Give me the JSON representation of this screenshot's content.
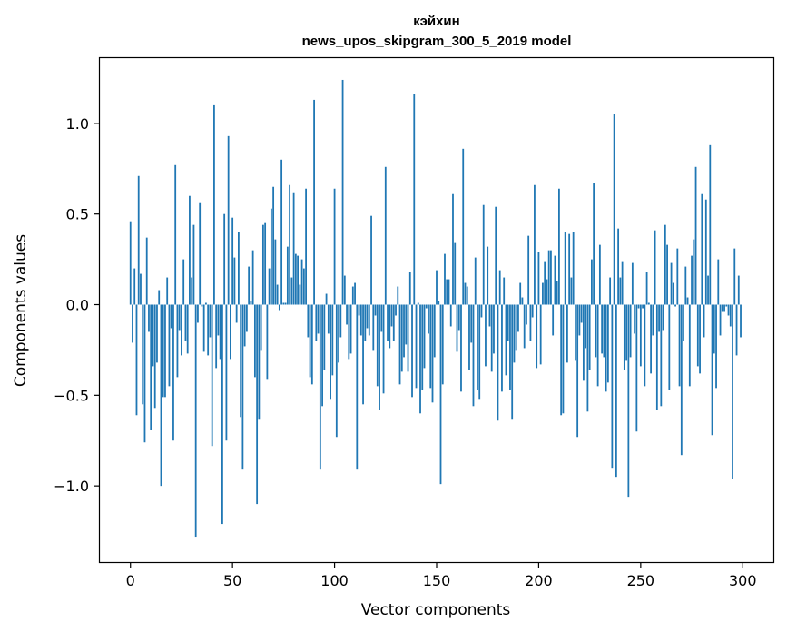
{
  "chart_data": {
    "type": "bar",
    "title": "кэйхин",
    "subtitle": "news_upos_skipgram_300_5_2019 model",
    "xlabel": "Vector components",
    "ylabel": "Components values",
    "xlim": [
      -15,
      315
    ],
    "ylim": [
      -1.42,
      1.36
    ],
    "xticks": [
      0,
      50,
      100,
      150,
      200,
      250,
      300
    ],
    "yticks": [
      -1.0,
      -0.5,
      0.0,
      0.5,
      1.0
    ],
    "xtick_labels": [
      "0",
      "50",
      "100",
      "150",
      "200",
      "250",
      "300"
    ],
    "ytick_labels": [
      "−1.0",
      "−0.5",
      "0.0",
      "0.5",
      "1.0"
    ],
    "bar_color": "#1f77b4",
    "x": "0..299",
    "values": [
      0.46,
      -0.21,
      0.2,
      -0.61,
      0.71,
      0.17,
      -0.55,
      -0.76,
      0.37,
      -0.15,
      -0.69,
      -0.34,
      -0.57,
      -0.32,
      0.08,
      -1.0,
      -0.51,
      -0.51,
      0.15,
      -0.45,
      -0.13,
      -0.75,
      0.77,
      -0.4,
      -0.14,
      -0.28,
      0.25,
      -0.2,
      -0.27,
      0.6,
      0.15,
      0.44,
      -1.28,
      -0.1,
      0.56,
      -0.01,
      -0.26,
      0.01,
      -0.28,
      -0.18,
      -0.78,
      1.1,
      -0.35,
      -0.17,
      -0.3,
      -1.21,
      0.5,
      -0.75,
      0.93,
      -0.3,
      0.48,
      0.26,
      -0.1,
      0.4,
      -0.62,
      -0.91,
      -0.23,
      -0.15,
      0.21,
      0.02,
      0.3,
      -0.4,
      -1.1,
      -0.63,
      -0.25,
      0.44,
      0.45,
      -0.41,
      0.2,
      0.53,
      0.65,
      0.36,
      0.11,
      -0.03,
      0.8,
      0.01,
      0.01,
      0.32,
      0.66,
      0.15,
      0.62,
      0.28,
      0.27,
      0.11,
      0.25,
      0.2,
      0.64,
      -0.18,
      -0.4,
      -0.44,
      1.13,
      -0.2,
      -0.16,
      -0.91,
      -0.56,
      -0.36,
      0.06,
      -0.16,
      -0.52,
      -0.39,
      0.64,
      -0.73,
      -0.32,
      -0.18,
      1.24,
      0.16,
      -0.11,
      -0.3,
      -0.27,
      0.1,
      0.12,
      -0.91,
      -0.06,
      -0.17,
      -0.55,
      -0.2,
      -0.13,
      -0.17,
      0.49,
      -0.25,
      -0.06,
      -0.45,
      -0.58,
      -0.15,
      -0.49,
      0.76,
      -0.2,
      -0.24,
      -0.12,
      -0.2,
      -0.06,
      0.1,
      -0.44,
      -0.37,
      -0.29,
      -0.22,
      -0.37,
      0.18,
      -0.51,
      1.16,
      -0.46,
      0.01,
      -0.6,
      -0.47,
      -0.35,
      -0.02,
      -0.16,
      -0.46,
      -0.54,
      -0.29,
      0.19,
      0.02,
      -0.99,
      -0.44,
      0.28,
      0.14,
      0.14,
      -0.12,
      0.61,
      0.34,
      -0.26,
      -0.14,
      -0.48,
      0.86,
      0.12,
      0.1,
      -0.36,
      -0.21,
      -0.56,
      0.26,
      -0.47,
      -0.52,
      -0.07,
      0.55,
      -0.34,
      0.32,
      -0.12,
      -0.37,
      -0.27,
      0.54,
      -0.64,
      0.19,
      -0.48,
      0.15,
      -0.39,
      -0.2,
      -0.47,
      -0.63,
      -0.32,
      -0.25,
      -0.15,
      0.12,
      0.04,
      -0.24,
      -0.11,
      0.38,
      -0.2,
      -0.07,
      0.66,
      -0.35,
      0.29,
      -0.33,
      0.12,
      0.24,
      0.14,
      0.3,
      0.3,
      -0.17,
      0.27,
      0.13,
      0.64,
      -0.61,
      -0.6,
      0.4,
      -0.32,
      0.39,
      0.15,
      0.4,
      -0.31,
      -0.73,
      -0.17,
      -0.1,
      -0.42,
      -0.24,
      -0.59,
      -0.36,
      0.25,
      0.67,
      -0.29,
      -0.45,
      0.33,
      -0.27,
      -0.29,
      -0.48,
      -0.43,
      0.15,
      -0.9,
      1.05,
      -0.95,
      0.42,
      0.15,
      0.24,
      -0.36,
      -0.31,
      -1.06,
      -0.29,
      0.23,
      -0.16,
      -0.7,
      -0.02,
      -0.34,
      -0.02,
      -0.45,
      0.18,
      0.01,
      -0.38,
      -0.17,
      0.41,
      -0.58,
      -0.15,
      -0.56,
      -0.14,
      0.44,
      0.33,
      -0.47,
      0.23,
      0.12,
      -0.01,
      0.31,
      -0.45,
      -0.83,
      -0.2,
      0.21,
      0.04,
      -0.45,
      0.27,
      0.36,
      0.76,
      -0.34,
      -0.38,
      0.61,
      -0.18,
      0.58,
      0.16,
      0.88,
      -0.72,
      -0.27,
      -0.46,
      0.25,
      -0.17,
      -0.04,
      -0.04,
      -0.01,
      -0.06,
      -0.12,
      -0.96,
      0.31,
      -0.28,
      0.16,
      -0.18
    ]
  }
}
